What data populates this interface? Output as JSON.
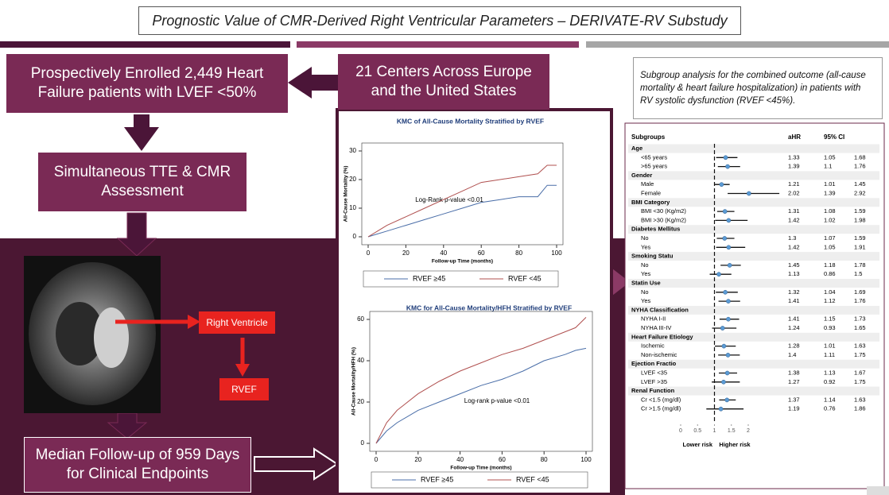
{
  "title": "Prognostic Value of CMR-Derived Right Ventricular Parameters – DERIVATE-RV Substudy",
  "boxes": {
    "enrolled": "Prospectively Enrolled 2,449 Heart Failure patients with LVEF <50%",
    "centers": "21 Centers Across Europe and the United States",
    "assessment": "Simultaneous TTE & CMR Assessment",
    "followup": "Median Follow-up of 959 Days for Clinical Endpoints",
    "subgroup_note": "Subgroup analysis for the combined outcome (all-cause mortality & heart failure hospitalization) in patients with RV systolic dysfunction (RVEF <45%)."
  },
  "image_labels": {
    "right_ventricle": "Right Ventricle",
    "rvef": "RVEF"
  },
  "chart_data": [
    {
      "type": "line",
      "title": "KMC of All-Cause Mortality Stratified by RVEF",
      "x_label": "Follow-up Time (months)",
      "y_label": "All-Cause Mortality (%)",
      "annotation": "Log-Rank p-value <0.01",
      "xlim": [
        0,
        100
      ],
      "xticks": [
        0,
        20,
        40,
        60,
        80,
        100
      ],
      "ylim": [
        0,
        30
      ],
      "yticks": [
        0,
        10,
        20,
        30
      ],
      "series": [
        {
          "name": "RVEF ≥45",
          "color": "#4a6ea8",
          "x": [
            0,
            5,
            10,
            20,
            30,
            40,
            50,
            60,
            70,
            80,
            90,
            95,
            100
          ],
          "values": [
            0,
            1,
            2,
            4,
            6,
            8,
            10,
            12,
            13,
            14,
            14,
            18,
            18
          ]
        },
        {
          "name": "RVEF <45",
          "color": "#b0504f",
          "x": [
            0,
            5,
            10,
            20,
            30,
            40,
            50,
            60,
            70,
            80,
            90,
            95,
            100
          ],
          "values": [
            0,
            2,
            4,
            7,
            10,
            13,
            16,
            19,
            20,
            21,
            22,
            25,
            25
          ]
        }
      ]
    },
    {
      "type": "line",
      "title": "KMC for All-Cause Mortality/HFH Stratified by RVEF",
      "x_label": "Follow-up Time (months)",
      "y_label": "All-Cause Mortality/HFH (%)",
      "annotation": "Log-rank p-value <0.01",
      "xlim": [
        0,
        100
      ],
      "xticks": [
        0,
        20,
        40,
        60,
        80,
        100
      ],
      "ylim": [
        0,
        60
      ],
      "yticks": [
        0,
        20,
        40,
        60
      ],
      "series": [
        {
          "name": "RVEF ≥45",
          "color": "#4a6ea8",
          "x": [
            0,
            5,
            10,
            20,
            30,
            40,
            50,
            60,
            70,
            80,
            90,
            95,
            100
          ],
          "values": [
            0,
            6,
            10,
            16,
            20,
            24,
            28,
            31,
            35,
            40,
            43,
            45,
            46
          ]
        },
        {
          "name": "RVEF <45",
          "color": "#b0504f",
          "x": [
            0,
            5,
            10,
            20,
            30,
            40,
            50,
            60,
            70,
            80,
            90,
            95,
            100
          ],
          "values": [
            0,
            10,
            16,
            24,
            30,
            35,
            39,
            43,
            46,
            50,
            54,
            56,
            61
          ]
        }
      ]
    },
    {
      "type": "forest",
      "columns": [
        "Subgroups",
        "aHR",
        "95% CI"
      ],
      "xlim": [
        0,
        3
      ],
      "xticks": [
        0,
        0.5,
        1,
        1.5,
        2
      ],
      "reference": 1,
      "risk_labels": [
        "Lower risk",
        "Higher risk"
      ],
      "color": "#5b9bd5",
      "groups": [
        {
          "label": "Age",
          "rows": [
            {
              "label": "<65 years",
              "ahr": 1.33,
              "ci": [
                1.05,
                1.68
              ]
            },
            {
              "label": ">65 years",
              "ahr": 1.39,
              "ci": [
                1.1,
                1.76
              ]
            }
          ]
        },
        {
          "label": "Gender",
          "rows": [
            {
              "label": "Male",
              "ahr": 1.21,
              "ci": [
                1.01,
                1.45
              ]
            },
            {
              "label": "Female",
              "ahr": 2.02,
              "ci": [
                1.39,
                2.92
              ]
            }
          ]
        },
        {
          "label": "BMI Category",
          "rows": [
            {
              "label": "BMI <30 (Kg/m2)",
              "ahr": 1.31,
              "ci": [
                1.08,
                1.59
              ]
            },
            {
              "label": "BMI >30 (Kg/m2)",
              "ahr": 1.42,
              "ci": [
                1.02,
                1.98
              ]
            }
          ]
        },
        {
          "label": "Diabetes Mellitus",
          "rows": [
            {
              "label": "No",
              "ahr": 1.3,
              "ci": [
                1.07,
                1.59
              ]
            },
            {
              "label": "Yes",
              "ahr": 1.42,
              "ci": [
                1.05,
                1.91
              ]
            }
          ]
        },
        {
          "label": "Smoking Statu",
          "rows": [
            {
              "label": "No",
              "ahr": 1.45,
              "ci": [
                1.18,
                1.78
              ]
            },
            {
              "label": "Yes",
              "ahr": 1.13,
              "ci": [
                0.86,
                1.5
              ]
            }
          ]
        },
        {
          "label": "Statin Use",
          "rows": [
            {
              "label": "No",
              "ahr": 1.32,
              "ci": [
                1.04,
                1.69
              ]
            },
            {
              "label": "Yes",
              "ahr": 1.41,
              "ci": [
                1.12,
                1.76
              ]
            }
          ]
        },
        {
          "label": "NYHA Classification",
          "rows": [
            {
              "label": "NYHA I-II",
              "ahr": 1.41,
              "ci": [
                1.15,
                1.73
              ]
            },
            {
              "label": "NYHA III-IV",
              "ahr": 1.24,
              "ci": [
                0.93,
                1.65
              ]
            }
          ]
        },
        {
          "label": "Heart Failure Etiology",
          "rows": [
            {
              "label": "Ischemic",
              "ahr": 1.28,
              "ci": [
                1.01,
                1.63
              ]
            },
            {
              "label": "Non-ischemic",
              "ahr": 1.4,
              "ci": [
                1.11,
                1.75
              ]
            }
          ]
        },
        {
          "label": "Ejection Fractio",
          "rows": [
            {
              "label": "LVEF <35",
              "ahr": 1.38,
              "ci": [
                1.13,
                1.67
              ]
            },
            {
              "label": "LVEF >35",
              "ahr": 1.27,
              "ci": [
                0.92,
                1.75
              ]
            }
          ]
        },
        {
          "label": "Renal Function",
          "rows": [
            {
              "label": "Cr <1.5 (mg/dl)",
              "ahr": 1.37,
              "ci": [
                1.14,
                1.63
              ]
            },
            {
              "label": "Cr >1.5 (mg/dl)",
              "ahr": 1.19,
              "ci": [
                0.76,
                1.86
              ]
            }
          ]
        }
      ]
    }
  ]
}
